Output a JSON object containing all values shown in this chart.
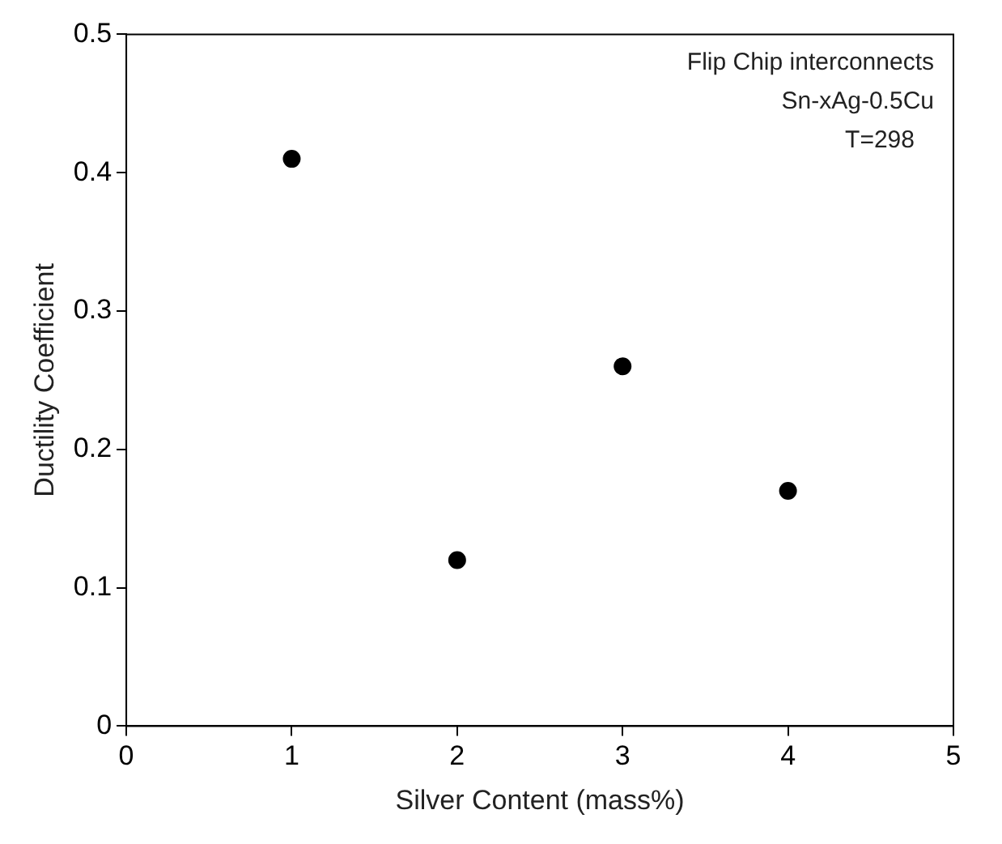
{
  "chart_data": {
    "type": "scatter",
    "xlabel": "Silver Content (mass%)",
    "ylabel": "Ductility Coefficient",
    "x": [
      1,
      2,
      3,
      4
    ],
    "series": [
      {
        "color": "#000000",
        "values": [
          0.41,
          0.12,
          0.26,
          0.17
        ]
      }
    ],
    "xlim": [
      0,
      5
    ],
    "xticks": [
      0,
      1,
      2,
      3,
      4,
      5
    ],
    "ylim": [
      0,
      0.5
    ],
    "yticks": [
      0,
      0.1,
      0.2,
      0.3,
      0.4,
      0.5
    ],
    "annotations": [
      "Flip Chip interconnects",
      "Sn-xAg-0.5Cu",
      "T=298"
    ],
    "marker": "circle",
    "grid": false,
    "legend": false
  }
}
